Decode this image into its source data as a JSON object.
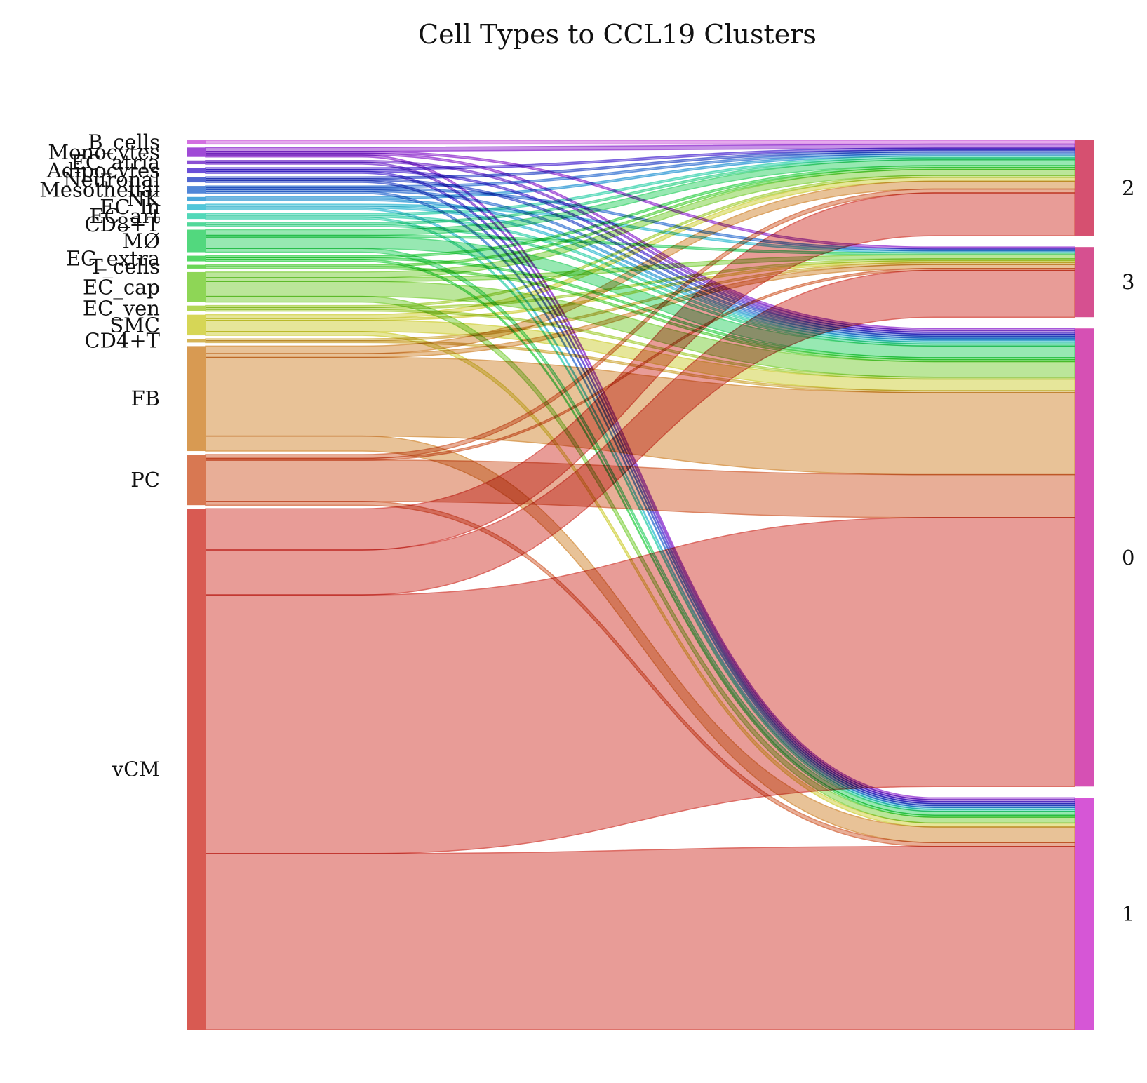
{
  "chart_data": {
    "type": "sankey",
    "title": "Cell Types to CCL19 Clusters",
    "sources": [
      {
        "name": "B_cells",
        "color": "#d26fe0"
      },
      {
        "name": "Monocytes",
        "color": "#a04ad6"
      },
      {
        "name": "EC_atria",
        "color": "#8a4fd3"
      },
      {
        "name": "Adipocytes",
        "color": "#6a4fd8"
      },
      {
        "name": "Neuronal",
        "color": "#5067d0"
      },
      {
        "name": "Mesothelial",
        "color": "#5086d8"
      },
      {
        "name": "NK",
        "color": "#4aa6db"
      },
      {
        "name": "EC_ln",
        "color": "#52c6d9"
      },
      {
        "name": "EC_art",
        "color": "#52d8b8"
      },
      {
        "name": "CD8+T",
        "color": "#52d89a"
      },
      {
        "name": "MØ",
        "color": "#52d87e"
      },
      {
        "name": "EC_extra",
        "color": "#52d866"
      },
      {
        "name": "T_cells",
        "color": "#6ad656"
      },
      {
        "name": "EC_cap",
        "color": "#8ed656"
      },
      {
        "name": "EC_ven",
        "color": "#b2d656"
      },
      {
        "name": "SMC",
        "color": "#d6d656"
      },
      {
        "name": "CD4+T",
        "color": "#d6b456"
      },
      {
        "name": "FB",
        "color": "#d89a52"
      },
      {
        "name": "PC",
        "color": "#d87852"
      },
      {
        "name": "vCM",
        "color": "#d85a52"
      }
    ],
    "targets": [
      {
        "name": "2",
        "color": "#d65070"
      },
      {
        "name": "3",
        "color": "#d65090"
      },
      {
        "name": "0",
        "color": "#d650b4"
      },
      {
        "name": "1",
        "color": "#d656d6"
      }
    ],
    "flows": [
      {
        "source": "B_cells",
        "target": "2",
        "value": 1
      },
      {
        "source": "Monocytes",
        "target": "2",
        "value": 1
      },
      {
        "source": "Monocytes",
        "target": "3",
        "value": 0.5
      },
      {
        "source": "Monocytes",
        "target": "0",
        "value": 0.5
      },
      {
        "source": "Monocytes",
        "target": "1",
        "value": 0.5
      },
      {
        "source": "EC_atria",
        "target": "0",
        "value": 0.5
      },
      {
        "source": "EC_atria",
        "target": "1",
        "value": 0.5
      },
      {
        "source": "Adipocytes",
        "target": "2",
        "value": 0.5
      },
      {
        "source": "Adipocytes",
        "target": "0",
        "value": 0.5
      },
      {
        "source": "Adipocytes",
        "target": "1",
        "value": 0.5
      },
      {
        "source": "Neuronal",
        "target": "2",
        "value": 0.5
      },
      {
        "source": "Neuronal",
        "target": "0",
        "value": 0.5
      },
      {
        "source": "Neuronal",
        "target": "1",
        "value": 0.5
      },
      {
        "source": "Mesothelial",
        "target": "2",
        "value": 0.5
      },
      {
        "source": "Mesothelial",
        "target": "3",
        "value": 0.5
      },
      {
        "source": "Mesothelial",
        "target": "0",
        "value": 0.5
      },
      {
        "source": "Mesothelial",
        "target": "1",
        "value": 0.5
      },
      {
        "source": "NK",
        "target": "2",
        "value": 0.5
      },
      {
        "source": "NK",
        "target": "0",
        "value": 0.5
      },
      {
        "source": "EC_ln",
        "target": "3",
        "value": 0.5
      },
      {
        "source": "EC_ln",
        "target": "0",
        "value": 0.5
      },
      {
        "source": "EC_ln",
        "target": "1",
        "value": 0.5
      },
      {
        "source": "EC_art",
        "target": "2",
        "value": 0.5
      },
      {
        "source": "EC_art",
        "target": "0",
        "value": 0.5
      },
      {
        "source": "EC_art",
        "target": "1",
        "value": 0.5
      },
      {
        "source": "CD8+T",
        "target": "2",
        "value": 0.5
      },
      {
        "source": "CD8+T",
        "target": "0",
        "value": 0.5
      },
      {
        "source": "MØ",
        "target": "2",
        "value": 1.5
      },
      {
        "source": "MØ",
        "target": "3",
        "value": 0.5
      },
      {
        "source": "MØ",
        "target": "0",
        "value": 3
      },
      {
        "source": "MØ",
        "target": "1",
        "value": 1
      },
      {
        "source": "EC_extra",
        "target": "2",
        "value": 0.5
      },
      {
        "source": "EC_extra",
        "target": "0",
        "value": 0.5
      },
      {
        "source": "EC_extra",
        "target": "1",
        "value": 0.5
      },
      {
        "source": "T_cells",
        "target": "2",
        "value": 0.5
      },
      {
        "source": "T_cells",
        "target": "0",
        "value": 0.5
      },
      {
        "source": "EC_cap",
        "target": "2",
        "value": 1.5
      },
      {
        "source": "EC_cap",
        "target": "3",
        "value": 1
      },
      {
        "source": "EC_cap",
        "target": "0",
        "value": 4
      },
      {
        "source": "EC_cap",
        "target": "1",
        "value": 1.5
      },
      {
        "source": "EC_ven",
        "target": "2",
        "value": 0.5
      },
      {
        "source": "EC_ven",
        "target": "3",
        "value": 0.5
      },
      {
        "source": "EC_ven",
        "target": "0",
        "value": 0.5
      },
      {
        "source": "SMC",
        "target": "2",
        "value": 1
      },
      {
        "source": "SMC",
        "target": "3",
        "value": 0.5
      },
      {
        "source": "SMC",
        "target": "0",
        "value": 3
      },
      {
        "source": "SMC",
        "target": "1",
        "value": 1
      },
      {
        "source": "CD4+T",
        "target": "3",
        "value": 0.5
      },
      {
        "source": "CD4+T",
        "target": "0",
        "value": 0.5
      },
      {
        "source": "FB",
        "target": "2",
        "value": 2
      },
      {
        "source": "FB",
        "target": "3",
        "value": 1
      },
      {
        "source": "FB",
        "target": "0",
        "value": 21
      },
      {
        "source": "FB",
        "target": "1",
        "value": 4
      },
      {
        "source": "PC",
        "target": "2",
        "value": 1
      },
      {
        "source": "PC",
        "target": "3",
        "value": 0.5
      },
      {
        "source": "PC",
        "target": "0",
        "value": 11
      },
      {
        "source": "PC",
        "target": "1",
        "value": 1
      },
      {
        "source": "vCM",
        "target": "2",
        "value": 11
      },
      {
        "source": "vCM",
        "target": "3",
        "value": 12
      },
      {
        "source": "vCM",
        "target": "0",
        "value": 69
      },
      {
        "source": "vCM",
        "target": "1",
        "value": 47
      }
    ]
  }
}
